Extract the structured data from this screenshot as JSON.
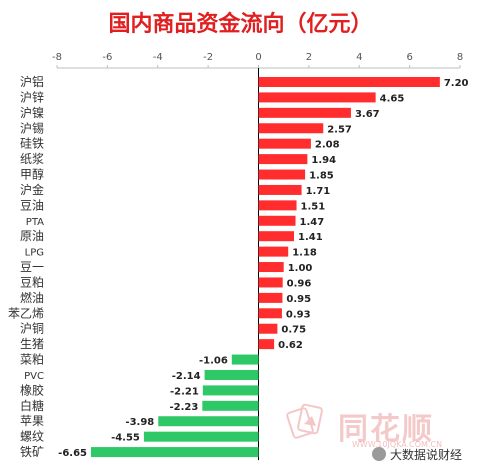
{
  "chart_data": {
    "type": "bar",
    "orientation": "horizontal",
    "title": "国内商品资金流向（亿元）",
    "categories": [
      "沪铝",
      "沪锌",
      "沪镍",
      "沪锡",
      "硅铁",
      "纸浆",
      "甲醇",
      "沪金",
      "豆油",
      "PTA",
      "原油",
      "LPG",
      "豆一",
      "豆粕",
      "燃油",
      "苯乙烯",
      "沪铜",
      "生猪",
      "菜粕",
      "PVC",
      "橡胶",
      "白糖",
      "苹果",
      "螺纹",
      "铁矿"
    ],
    "values": [
      7.2,
      4.65,
      3.67,
      2.57,
      2.08,
      1.94,
      1.85,
      1.71,
      1.51,
      1.47,
      1.41,
      1.18,
      1.0,
      0.96,
      0.95,
      0.93,
      0.75,
      0.62,
      -1.06,
      -2.14,
      -2.21,
      -2.23,
      -3.98,
      -4.55,
      -6.65
    ],
    "value_labels": [
      "7.20",
      "4.65",
      "3.67",
      "2.57",
      "2.08",
      "1.94",
      "1.85",
      "1.71",
      "1.51",
      "1.47",
      "1.41",
      "1.18",
      "1.00",
      "0.96",
      "0.95",
      "0.93",
      "0.75",
      "0.62",
      "-1.06",
      "-2.14",
      "-2.21",
      "-2.23",
      "-3.98",
      "-4.55",
      "-6.65"
    ],
    "xlim": [
      -8,
      8
    ],
    "xticks": [
      -8,
      -6,
      -4,
      -2,
      0,
      2,
      4,
      6,
      8
    ],
    "xtick_labels": [
      "-8",
      "-6",
      "-4",
      "-2",
      "0",
      "2",
      "4",
      "6",
      "8"
    ],
    "axis_position": "top",
    "grid": false,
    "colors": {
      "positive": "#ff2d2d",
      "negative": "#2ec866",
      "title": "#e02020"
    }
  },
  "watermark": {
    "brand": "同花顺",
    "url": "WWW.10JQKA.COM.CN",
    "account": "大数据说财经"
  }
}
